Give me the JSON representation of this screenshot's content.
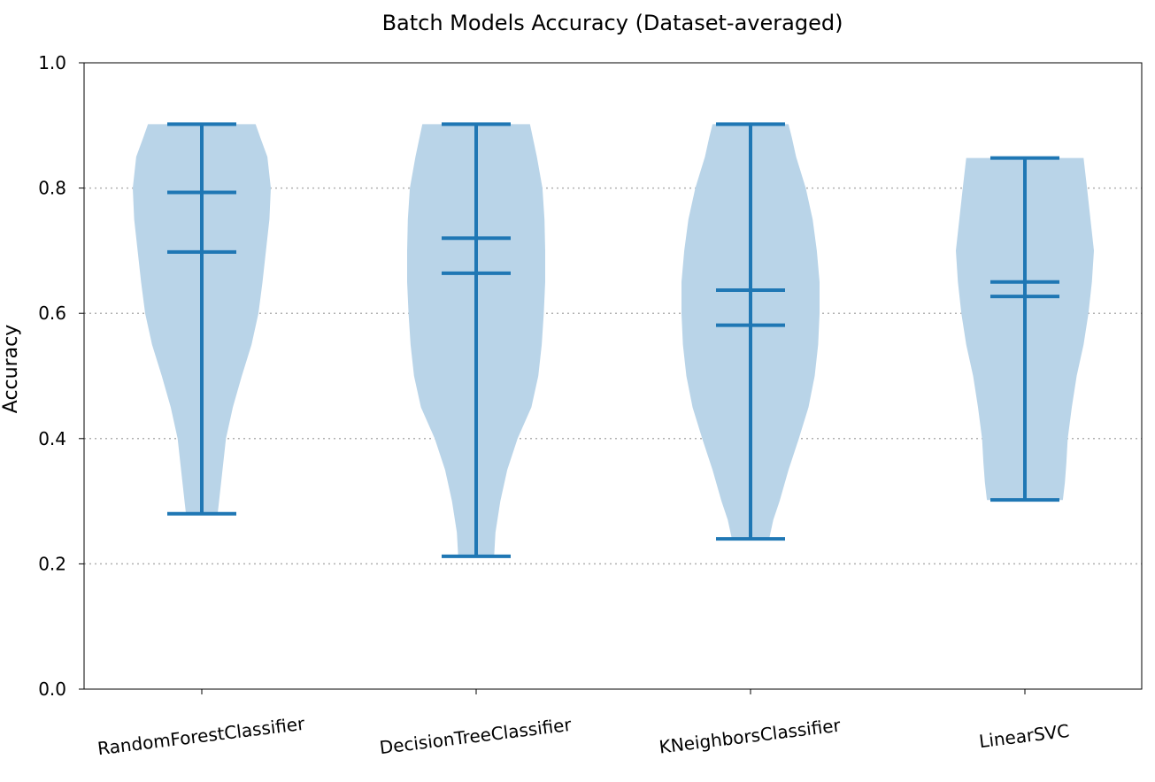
{
  "chart_data": {
    "type": "violin",
    "title": "Batch Models Accuracy (Dataset-averaged)",
    "xlabel": "",
    "ylabel": "Accuracy",
    "ylim": [
      0.0,
      1.0
    ],
    "yticks": [
      "0.0",
      "0.2",
      "0.4",
      "0.6",
      "0.8",
      "1.0"
    ],
    "grid": "horizontal dotted at 0.2, 0.4, 0.6, 0.8",
    "colors": {
      "body": "#b9d4e8",
      "stats": "#1f77b4",
      "grid": "#b0b0b0"
    },
    "categories": [
      "RandomForestClassifier",
      "DecisionTreeClassifier",
      "KNeighborsClassifier",
      "LinearSVC"
    ],
    "violins": [
      {
        "name": "RandomForestClassifier",
        "min": 0.28,
        "max": 0.902,
        "median": 0.793,
        "mean": 0.698,
        "density_profile": [
          [
            0.28,
            0.23
          ],
          [
            0.3,
            0.25
          ],
          [
            0.35,
            0.3
          ],
          [
            0.4,
            0.35
          ],
          [
            0.45,
            0.45
          ],
          [
            0.5,
            0.58
          ],
          [
            0.55,
            0.72
          ],
          [
            0.6,
            0.82
          ],
          [
            0.65,
            0.88
          ],
          [
            0.7,
            0.93
          ],
          [
            0.75,
            0.98
          ],
          [
            0.8,
            1.0
          ],
          [
            0.85,
            0.95
          ],
          [
            0.88,
            0.85
          ],
          [
            0.902,
            0.78
          ]
        ]
      },
      {
        "name": "DecisionTreeClassifier",
        "min": 0.212,
        "max": 0.902,
        "median": 0.72,
        "mean": 0.664,
        "density_profile": [
          [
            0.212,
            0.26
          ],
          [
            0.25,
            0.28
          ],
          [
            0.3,
            0.35
          ],
          [
            0.35,
            0.45
          ],
          [
            0.4,
            0.6
          ],
          [
            0.45,
            0.8
          ],
          [
            0.5,
            0.9
          ],
          [
            0.55,
            0.95
          ],
          [
            0.6,
            0.98
          ],
          [
            0.65,
            1.0
          ],
          [
            0.7,
            1.0
          ],
          [
            0.75,
            0.99
          ],
          [
            0.8,
            0.96
          ],
          [
            0.85,
            0.88
          ],
          [
            0.902,
            0.78
          ]
        ]
      },
      {
        "name": "KNeighborsClassifier",
        "min": 0.24,
        "max": 0.902,
        "median": 0.637,
        "mean": 0.581,
        "density_profile": [
          [
            0.24,
            0.27
          ],
          [
            0.27,
            0.33
          ],
          [
            0.3,
            0.42
          ],
          [
            0.35,
            0.55
          ],
          [
            0.4,
            0.7
          ],
          [
            0.45,
            0.84
          ],
          [
            0.5,
            0.93
          ],
          [
            0.55,
            0.98
          ],
          [
            0.6,
            1.0
          ],
          [
            0.65,
            1.0
          ],
          [
            0.7,
            0.96
          ],
          [
            0.75,
            0.9
          ],
          [
            0.8,
            0.8
          ],
          [
            0.85,
            0.66
          ],
          [
            0.88,
            0.6
          ],
          [
            0.902,
            0.55
          ]
        ]
      },
      {
        "name": "LinearSVC",
        "min": 0.302,
        "max": 0.848,
        "median": 0.65,
        "mean": 0.627,
        "density_profile": [
          [
            0.302,
            0.55
          ],
          [
            0.33,
            0.58
          ],
          [
            0.36,
            0.6
          ],
          [
            0.4,
            0.62
          ],
          [
            0.45,
            0.68
          ],
          [
            0.5,
            0.75
          ],
          [
            0.55,
            0.85
          ],
          [
            0.6,
            0.92
          ],
          [
            0.65,
            0.97
          ],
          [
            0.7,
            1.0
          ],
          [
            0.75,
            0.95
          ],
          [
            0.8,
            0.9
          ],
          [
            0.848,
            0.85
          ]
        ]
      }
    ]
  }
}
